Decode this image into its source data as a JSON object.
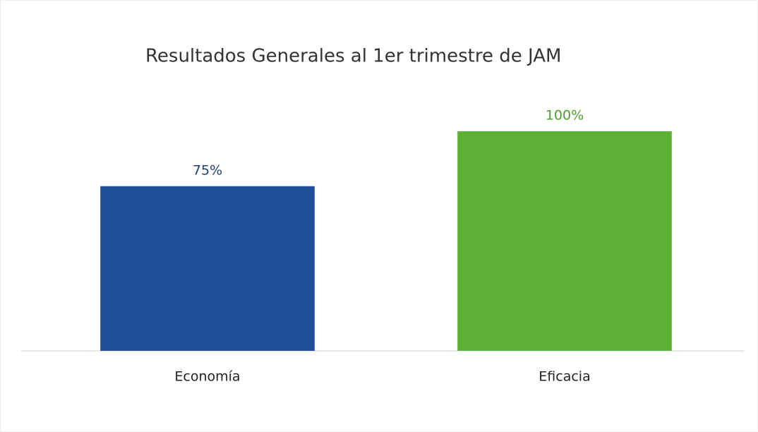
{
  "chart_data": {
    "type": "bar",
    "title": "Resultados Generales al 1er trimestre de JAM",
    "categories": [
      "Economía",
      "Eficacia"
    ],
    "values": [
      75,
      100
    ],
    "value_labels": [
      "75%",
      "100%"
    ],
    "colors": [
      "#1f4f98",
      "#5bb134"
    ],
    "label_colors": [
      "#1e3f73",
      "#4e9e2e"
    ]
  }
}
